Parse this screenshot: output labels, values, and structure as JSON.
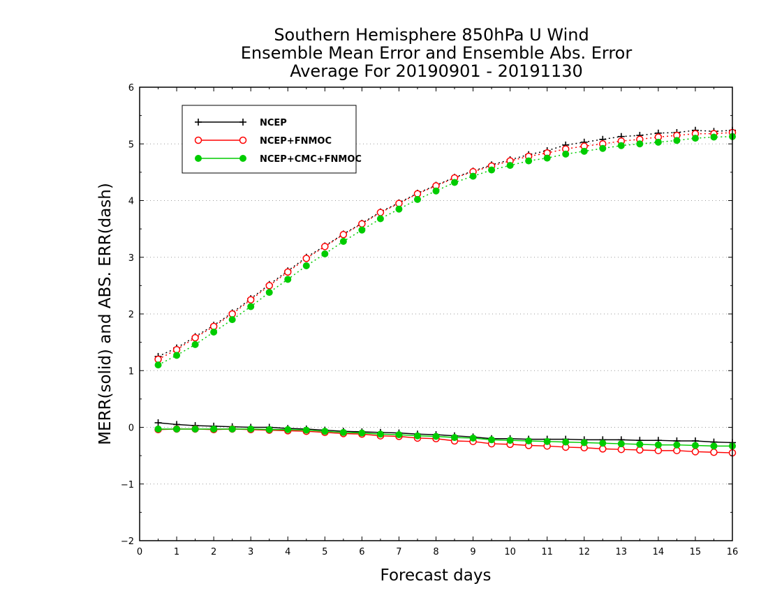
{
  "chart_data": {
    "type": "line",
    "title": [
      "Southern Hemisphere 850hPa U Wind",
      "Ensemble Mean Error and Ensemble Abs. Error",
      "Average For 20190901 - 20191130"
    ],
    "xlabel": "Forecast days",
    "ylabel": "MERR(solid) and ABS. ERR(dash)",
    "xlim": [
      0,
      16
    ],
    "ylim": [
      -2,
      6
    ],
    "xticks": [
      "0",
      "1",
      "2",
      "3",
      "4",
      "5",
      "6",
      "7",
      "8",
      "9",
      "10",
      "11",
      "12",
      "13",
      "14",
      "15",
      "16"
    ],
    "yticks": [
      "−2",
      "−1",
      "0",
      "1",
      "2",
      "3",
      "4",
      "5",
      "6"
    ],
    "grid": "horizontal dotted",
    "legend_position": "top-left",
    "x": [
      0.5,
      1,
      1.5,
      2,
      2.5,
      3,
      3.5,
      4,
      4.5,
      5,
      5.5,
      6,
      6.5,
      7,
      7.5,
      8,
      8.5,
      9,
      9.5,
      10,
      10.5,
      11,
      11.5,
      12,
      12.5,
      13,
      13.5,
      14,
      14.5,
      15,
      15.5,
      16
    ],
    "series": [
      {
        "name": "NCEP",
        "color": "#000000",
        "marker": "plus",
        "abs_err": [
          1.25,
          1.4,
          1.6,
          1.8,
          2.02,
          2.27,
          2.52,
          2.76,
          3.0,
          3.2,
          3.41,
          3.6,
          3.8,
          3.96,
          4.13,
          4.27,
          4.41,
          4.52,
          4.63,
          4.72,
          4.81,
          4.88,
          4.98,
          5.03,
          5.08,
          5.13,
          5.15,
          5.19,
          5.2,
          5.24,
          5.22,
          5.24
        ],
        "mean_err": [
          0.08,
          0.05,
          0.03,
          0.02,
          0.01,
          0.0,
          0.0,
          -0.02,
          -0.03,
          -0.05,
          -0.07,
          -0.08,
          -0.09,
          -0.1,
          -0.12,
          -0.13,
          -0.15,
          -0.17,
          -0.2,
          -0.2,
          -0.21,
          -0.21,
          -0.21,
          -0.22,
          -0.22,
          -0.22,
          -0.23,
          -0.23,
          -0.24,
          -0.24,
          -0.26,
          -0.27
        ]
      },
      {
        "name": "NCEP+FNMOC",
        "color": "#ff0000",
        "marker": "open-circle",
        "abs_err": [
          1.2,
          1.37,
          1.58,
          1.78,
          2.0,
          2.25,
          2.5,
          2.74,
          2.98,
          3.19,
          3.4,
          3.59,
          3.79,
          3.95,
          4.12,
          4.26,
          4.4,
          4.51,
          4.61,
          4.7,
          4.78,
          4.84,
          4.91,
          4.96,
          5.0,
          5.05,
          5.08,
          5.12,
          5.15,
          5.18,
          5.18,
          5.2
        ],
        "mean_err": [
          -0.04,
          -0.03,
          -0.03,
          -0.04,
          -0.03,
          -0.04,
          -0.05,
          -0.06,
          -0.07,
          -0.09,
          -0.11,
          -0.12,
          -0.15,
          -0.16,
          -0.19,
          -0.2,
          -0.24,
          -0.25,
          -0.29,
          -0.3,
          -0.32,
          -0.33,
          -0.35,
          -0.36,
          -0.38,
          -0.39,
          -0.4,
          -0.41,
          -0.41,
          -0.43,
          -0.44,
          -0.45
        ]
      },
      {
        "name": "NCEP+CMC+FNMOC",
        "color": "#00cc00",
        "marker": "filled-circle",
        "abs_err": [
          1.1,
          1.27,
          1.46,
          1.68,
          1.9,
          2.13,
          2.38,
          2.61,
          2.85,
          3.06,
          3.28,
          3.48,
          3.68,
          3.85,
          4.02,
          4.17,
          4.32,
          4.43,
          4.54,
          4.62,
          4.7,
          4.75,
          4.82,
          4.87,
          4.92,
          4.97,
          5.0,
          5.03,
          5.06,
          5.1,
          5.12,
          5.13
        ],
        "mean_err": [
          -0.03,
          -0.03,
          -0.03,
          -0.03,
          -0.03,
          -0.03,
          -0.04,
          -0.04,
          -0.05,
          -0.07,
          -0.09,
          -0.1,
          -0.12,
          -0.13,
          -0.15,
          -0.16,
          -0.18,
          -0.19,
          -0.22,
          -0.23,
          -0.24,
          -0.25,
          -0.26,
          -0.27,
          -0.28,
          -0.29,
          -0.3,
          -0.31,
          -0.31,
          -0.32,
          -0.33,
          -0.33
        ]
      }
    ]
  }
}
